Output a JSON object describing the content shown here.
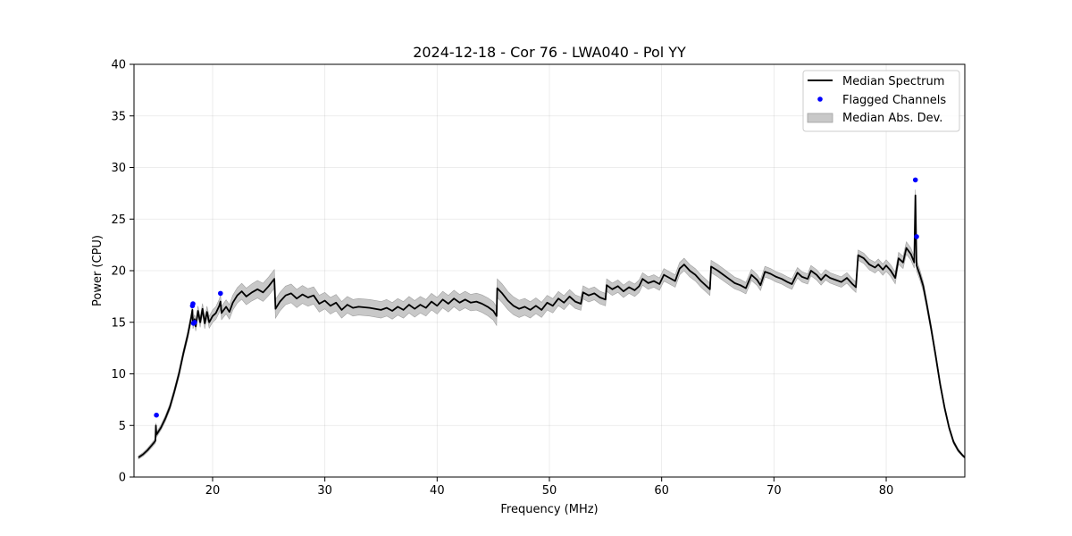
{
  "chart_data": {
    "type": "line",
    "title": "2024-12-18 - Cor 76 - LWA040 - Pol YY",
    "xlabel": "Frequency (MHz)",
    "ylabel": "Power (CPU)",
    "xlim": [
      13,
      87
    ],
    "ylim": [
      0,
      40
    ],
    "xticks": [
      20,
      30,
      40,
      50,
      60,
      70,
      80
    ],
    "yticks": [
      0,
      5,
      10,
      15,
      20,
      25,
      30,
      35,
      40
    ],
    "grid": true,
    "legend_position": "top-right",
    "legend": [
      {
        "label": "Median Spectrum",
        "kind": "line",
        "color": "#000000"
      },
      {
        "label": "Flagged Channels",
        "kind": "marker",
        "color": "#0000ff"
      },
      {
        "label": "Median Abs. Dev.",
        "kind": "band",
        "color": "#c8c8c8"
      }
    ],
    "series": [
      {
        "name": "Median Spectrum",
        "kind": "line",
        "color": "#000000",
        "points": [
          [
            13.4,
            1.9
          ],
          [
            13.8,
            2.2
          ],
          [
            14.2,
            2.6
          ],
          [
            14.6,
            3.1
          ],
          [
            14.9,
            3.5
          ],
          [
            14.95,
            5.0
          ],
          [
            15.0,
            4.1
          ],
          [
            15.4,
            4.8
          ],
          [
            15.8,
            5.7
          ],
          [
            16.2,
            6.8
          ],
          [
            16.6,
            8.3
          ],
          [
            17.0,
            10.0
          ],
          [
            17.4,
            12.0
          ],
          [
            17.8,
            13.8
          ],
          [
            18.1,
            15.5
          ],
          [
            18.2,
            16.2
          ],
          [
            18.25,
            14.8
          ],
          [
            18.4,
            15.3
          ],
          [
            18.5,
            14.6
          ],
          [
            18.7,
            16.1
          ],
          [
            18.9,
            15.0
          ],
          [
            19.1,
            16.3
          ],
          [
            19.3,
            14.9
          ],
          [
            19.5,
            16.0
          ],
          [
            19.7,
            15.0
          ],
          [
            20.0,
            15.6
          ],
          [
            20.3,
            15.9
          ],
          [
            20.6,
            16.6
          ],
          [
            20.7,
            17.0
          ],
          [
            20.8,
            15.9
          ],
          [
            21.2,
            16.5
          ],
          [
            21.5,
            16.0
          ],
          [
            21.8,
            16.9
          ],
          [
            22.2,
            17.6
          ],
          [
            22.6,
            18.0
          ],
          [
            23.0,
            17.5
          ],
          [
            23.5,
            17.9
          ],
          [
            24.0,
            18.2
          ],
          [
            24.5,
            17.9
          ],
          [
            25.0,
            18.5
          ],
          [
            25.5,
            19.2
          ],
          [
            25.6,
            16.3
          ],
          [
            26.0,
            17.0
          ],
          [
            26.5,
            17.6
          ],
          [
            27.0,
            17.8
          ],
          [
            27.5,
            17.3
          ],
          [
            28.0,
            17.7
          ],
          [
            28.5,
            17.4
          ],
          [
            29.0,
            17.6
          ],
          [
            29.5,
            16.8
          ],
          [
            30.0,
            17.1
          ],
          [
            30.5,
            16.6
          ],
          [
            31.0,
            16.9
          ],
          [
            31.5,
            16.2
          ],
          [
            32.0,
            16.7
          ],
          [
            32.5,
            16.4
          ],
          [
            33.0,
            16.5
          ],
          [
            34.0,
            16.4
          ],
          [
            35.0,
            16.2
          ],
          [
            35.5,
            16.4
          ],
          [
            36.0,
            16.1
          ],
          [
            36.5,
            16.5
          ],
          [
            37.0,
            16.2
          ],
          [
            37.5,
            16.7
          ],
          [
            38.0,
            16.3
          ],
          [
            38.5,
            16.7
          ],
          [
            39.0,
            16.4
          ],
          [
            39.5,
            17.0
          ],
          [
            40.0,
            16.6
          ],
          [
            40.5,
            17.2
          ],
          [
            41.0,
            16.8
          ],
          [
            41.5,
            17.3
          ],
          [
            42.0,
            16.9
          ],
          [
            42.5,
            17.2
          ],
          [
            43.0,
            16.9
          ],
          [
            43.5,
            17.0
          ],
          [
            44.0,
            16.8
          ],
          [
            44.5,
            16.5
          ],
          [
            45.0,
            16.1
          ],
          [
            45.3,
            15.6
          ],
          [
            45.35,
            18.3
          ],
          [
            45.8,
            17.8
          ],
          [
            46.3,
            17.1
          ],
          [
            46.8,
            16.6
          ],
          [
            47.3,
            16.3
          ],
          [
            47.8,
            16.5
          ],
          [
            48.3,
            16.2
          ],
          [
            48.8,
            16.6
          ],
          [
            49.3,
            16.2
          ],
          [
            49.8,
            16.9
          ],
          [
            50.3,
            16.6
          ],
          [
            50.8,
            17.3
          ],
          [
            51.3,
            16.9
          ],
          [
            51.8,
            17.5
          ],
          [
            52.3,
            17.0
          ],
          [
            52.8,
            16.8
          ],
          [
            53.0,
            17.9
          ],
          [
            53.5,
            17.6
          ],
          [
            54.0,
            17.8
          ],
          [
            54.5,
            17.4
          ],
          [
            55.0,
            17.2
          ],
          [
            55.1,
            18.6
          ],
          [
            55.6,
            18.2
          ],
          [
            56.1,
            18.5
          ],
          [
            56.6,
            18.0
          ],
          [
            57.1,
            18.4
          ],
          [
            57.6,
            18.1
          ],
          [
            58.0,
            18.5
          ],
          [
            58.3,
            19.2
          ],
          [
            58.8,
            18.8
          ],
          [
            59.3,
            19.0
          ],
          [
            59.8,
            18.7
          ],
          [
            60.2,
            19.6
          ],
          [
            60.7,
            19.3
          ],
          [
            61.2,
            19.0
          ],
          [
            61.6,
            20.2
          ],
          [
            62.0,
            20.6
          ],
          [
            62.5,
            20.0
          ],
          [
            63.0,
            19.6
          ],
          [
            63.5,
            19.0
          ],
          [
            64.0,
            18.5
          ],
          [
            64.3,
            18.2
          ],
          [
            64.4,
            20.4
          ],
          [
            65.0,
            20.0
          ],
          [
            65.5,
            19.6
          ],
          [
            66.0,
            19.2
          ],
          [
            66.5,
            18.8
          ],
          [
            67.0,
            18.6
          ],
          [
            67.5,
            18.3
          ],
          [
            68.0,
            19.6
          ],
          [
            68.5,
            19.1
          ],
          [
            68.8,
            18.6
          ],
          [
            69.2,
            19.9
          ],
          [
            69.7,
            19.7
          ],
          [
            70.2,
            19.4
          ],
          [
            70.7,
            19.2
          ],
          [
            71.2,
            18.9
          ],
          [
            71.6,
            18.7
          ],
          [
            72.1,
            19.8
          ],
          [
            72.5,
            19.4
          ],
          [
            73.0,
            19.2
          ],
          [
            73.3,
            20.0
          ],
          [
            73.8,
            19.6
          ],
          [
            74.2,
            19.1
          ],
          [
            74.6,
            19.6
          ],
          [
            75.0,
            19.3
          ],
          [
            75.5,
            19.1
          ],
          [
            76.0,
            18.9
          ],
          [
            76.5,
            19.3
          ],
          [
            77.0,
            18.7
          ],
          [
            77.3,
            18.4
          ],
          [
            77.5,
            21.5
          ],
          [
            78.0,
            21.2
          ],
          [
            78.5,
            20.6
          ],
          [
            79.0,
            20.3
          ],
          [
            79.3,
            20.6
          ],
          [
            79.7,
            20.1
          ],
          [
            80.0,
            20.5
          ],
          [
            80.4,
            20.0
          ],
          [
            80.8,
            19.3
          ],
          [
            81.1,
            21.2
          ],
          [
            81.5,
            20.8
          ],
          [
            81.8,
            22.2
          ],
          [
            82.2,
            21.6
          ],
          [
            82.5,
            20.8
          ],
          [
            82.6,
            27.3
          ],
          [
            82.7,
            20.5
          ],
          [
            83.0,
            19.6
          ],
          [
            83.3,
            18.5
          ],
          [
            83.6,
            16.8
          ],
          [
            84.0,
            14.4
          ],
          [
            84.4,
            11.8
          ],
          [
            84.8,
            9.0
          ],
          [
            85.2,
            6.7
          ],
          [
            85.6,
            4.8
          ],
          [
            86.0,
            3.4
          ],
          [
            86.4,
            2.6
          ],
          [
            86.8,
            2.1
          ],
          [
            87.0,
            1.9
          ]
        ]
      },
      {
        "name": "Flagged Channels",
        "kind": "scatter",
        "color": "#0000ff",
        "points": [
          [
            15.0,
            6.0
          ],
          [
            18.2,
            16.6
          ],
          [
            18.25,
            16.8
          ],
          [
            18.3,
            14.9
          ],
          [
            18.4,
            15.0
          ],
          [
            20.7,
            17.8
          ],
          [
            82.6,
            28.8
          ],
          [
            82.7,
            23.3
          ]
        ]
      },
      {
        "name": "Median Abs. Dev.",
        "kind": "band",
        "color": "#c8c8c8",
        "halfwidth_points": [
          [
            13.4,
            0.15
          ],
          [
            18.0,
            0.4
          ],
          [
            20.0,
            0.6
          ],
          [
            23.0,
            0.8
          ],
          [
            25.0,
            0.9
          ],
          [
            27.0,
            0.9
          ],
          [
            30.0,
            0.8
          ],
          [
            35.0,
            0.8
          ],
          [
            40.0,
            0.8
          ],
          [
            43.0,
            0.8
          ],
          [
            45.3,
            0.9
          ],
          [
            46.0,
            0.9
          ],
          [
            50.0,
            0.7
          ],
          [
            55.0,
            0.6
          ],
          [
            60.0,
            0.6
          ],
          [
            65.0,
            0.6
          ],
          [
            70.0,
            0.5
          ],
          [
            75.0,
            0.5
          ],
          [
            78.0,
            0.5
          ],
          [
            82.0,
            0.6
          ],
          [
            84.0,
            0.4
          ],
          [
            87.0,
            0.1
          ]
        ]
      }
    ]
  }
}
